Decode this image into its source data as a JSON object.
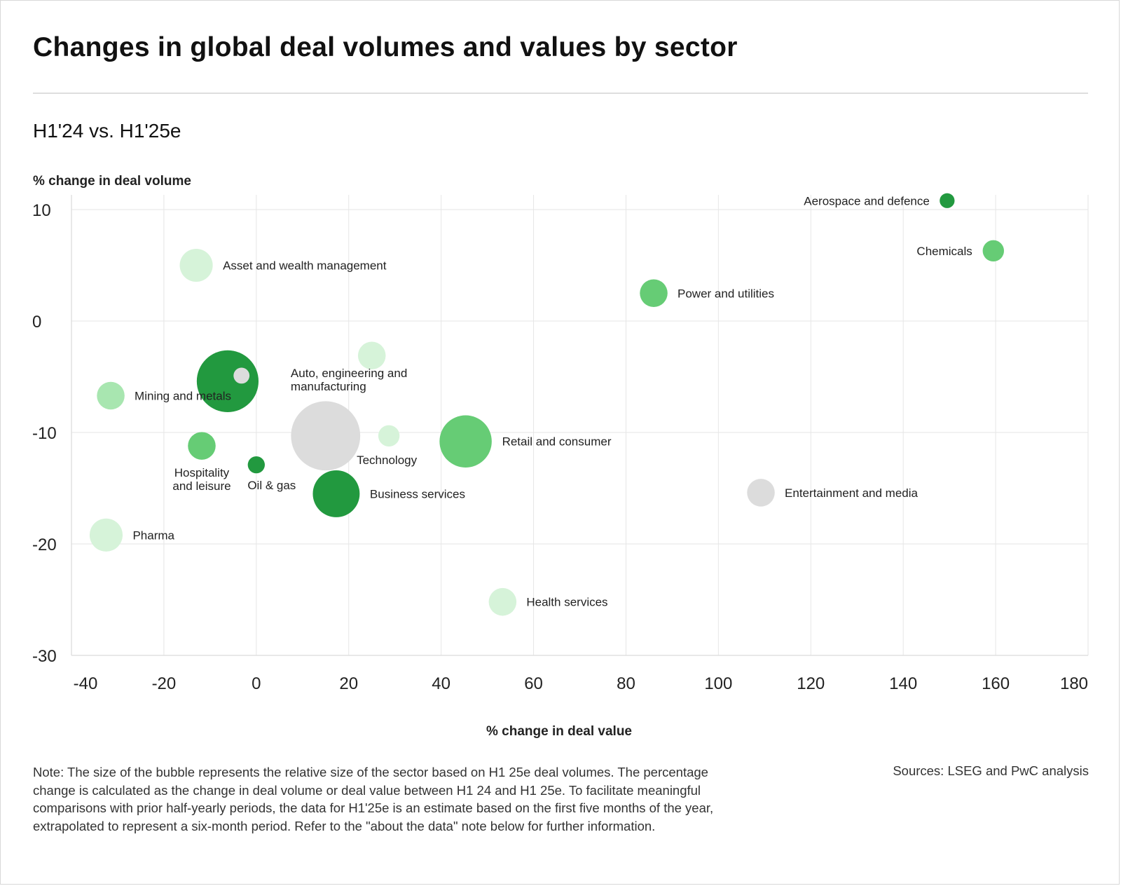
{
  "title": "Changes in global deal volumes and values by sector",
  "subtitle": "H1'24 vs. H1'25e",
  "note": "Note: The size of the bubble represents the relative size of the sector based on H1 25e deal volumes. The percentage change is calculated as the change in deal volume or deal value between H1 24 and H1 25e. To facilitate meaningful comparisons with prior half-yearly periods, the data for H1'25e is an estimate based on the first five months of the year, extrapolated to represent a six-month period. Refer to the \"about the data\" note below for further information.",
  "sources": "Sources: LSEG and PwC analysis",
  "chart_data": {
    "type": "scatter",
    "xlabel": "% change in deal value",
    "ylabel": "% change in deal volume",
    "xlim": [
      -40,
      180
    ],
    "ylim": [
      -30,
      10
    ],
    "xticks": [
      -40,
      -20,
      0,
      20,
      40,
      60,
      80,
      100,
      120,
      140,
      160,
      180
    ],
    "yticks": [
      10,
      0,
      -10,
      -20,
      -30
    ],
    "grid": true,
    "bubble_size_meaning": "relative size of the sector based on H1 25e deal volumes",
    "colors": {
      "dark_green": "#22993f",
      "mid_green": "#66cc75",
      "light_green": "#a8e6b0",
      "pale_green": "#d6f3d9",
      "grey": "#dcdcdc"
    },
    "points": [
      {
        "label": "Aerospace and defence",
        "x": 149.5,
        "y": 10.8,
        "size": 1.4,
        "color": "#22993f"
      },
      {
        "label": "Chemicals",
        "x": 159.5,
        "y": 6.3,
        "size": 2.0,
        "color": "#66cc75"
      },
      {
        "label": "Power and utilities",
        "x": 86,
        "y": 2.5,
        "size": 2.6,
        "color": "#66cc75"
      },
      {
        "label": "Asset and wealth management",
        "x": -13,
        "y": 5,
        "size": 3.1,
        "color": "#d6f3d9"
      },
      {
        "label": "",
        "x": 25,
        "y": -3.1,
        "size": 2.6,
        "color": "#d6f3d9"
      },
      {
        "label": "Auto, engineering and manufacturing",
        "x": -6.2,
        "y": -5.4,
        "size": 5.8,
        "color": "#22993f"
      },
      {
        "label": "",
        "x": -3.2,
        "y": -4.9,
        "size": 1.5,
        "color": "#dcdcdc"
      },
      {
        "label": "Mining and metals",
        "x": -31.5,
        "y": -6.7,
        "size": 2.6,
        "color": "#a8e6b0"
      },
      {
        "label": "",
        "x": 15,
        "y": -10.3,
        "size": 6.5,
        "color": "#dcdcdc"
      },
      {
        "label": "Technology",
        "x": 28.7,
        "y": -10.3,
        "size": 2.0,
        "color": "#d6f3d9"
      },
      {
        "label": "Retail and consumer",
        "x": 45.3,
        "y": -10.8,
        "size": 4.9,
        "color": "#66cc75"
      },
      {
        "label": "Hospitality and leisure",
        "x": -11.8,
        "y": -11.2,
        "size": 2.6,
        "color": "#66cc75"
      },
      {
        "label": "Oil & gas",
        "x": 0,
        "y": -12.9,
        "size": 1.6,
        "color": "#22993f"
      },
      {
        "label": "Business services",
        "x": 17.3,
        "y": -15.5,
        "size": 4.4,
        "color": "#22993f"
      },
      {
        "label": "Entertainment and media",
        "x": 109.2,
        "y": -15.4,
        "size": 2.6,
        "color": "#dcdcdc"
      },
      {
        "label": "Pharma",
        "x": -32.5,
        "y": -19.2,
        "size": 3.1,
        "color": "#d6f3d9"
      },
      {
        "label": "Health services",
        "x": 53.3,
        "y": -25.2,
        "size": 2.6,
        "color": "#d6f3d9"
      }
    ]
  }
}
